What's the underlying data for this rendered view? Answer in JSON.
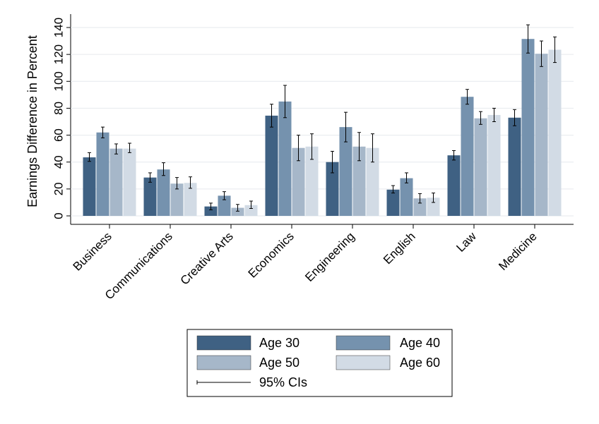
{
  "chart_data": {
    "type": "bar",
    "y_label": "Earnings Difference in Percent",
    "categories": [
      "Business",
      "Communications",
      "Creative Arts",
      "Economics",
      "Engineering",
      "English",
      "Law",
      "Medicine"
    ],
    "series": [
      {
        "name": "Age 30",
        "color": "#3f6183",
        "values": [
          43.5,
          28.5,
          7,
          74.5,
          40,
          19.5,
          45,
          73
        ],
        "ci_low": [
          40.5,
          25,
          4.5,
          66,
          32,
          17,
          41.5,
          67
        ],
        "ci_high": [
          47,
          32,
          9.5,
          83,
          48,
          22.5,
          48.5,
          79
        ]
      },
      {
        "name": "Age 40",
        "color": "#7592ae",
        "values": [
          62,
          34.5,
          15,
          85,
          66,
          28,
          88.5,
          131.5
        ],
        "ci_low": [
          58,
          30,
          12,
          73,
          55,
          24.5,
          83,
          121
        ],
        "ci_high": [
          66,
          39.5,
          18,
          97,
          77,
          32,
          94,
          142
        ]
      },
      {
        "name": "Age 50",
        "color": "#a6b7c9",
        "values": [
          50,
          24,
          6,
          50.5,
          51.5,
          13,
          72.5,
          120.5
        ],
        "ci_low": [
          46,
          20,
          3.5,
          41,
          41,
          9.5,
          68,
          111
        ],
        "ci_high": [
          53.5,
          28.5,
          8.5,
          60,
          62,
          16.5,
          77.5,
          130
        ]
      },
      {
        "name": "Age 60",
        "color": "#d2dbe5",
        "values": [
          50,
          24.5,
          8,
          51.5,
          50.5,
          13.5,
          75,
          123.5
        ],
        "ci_low": [
          47,
          20.5,
          5.5,
          42,
          40,
          10,
          70,
          114
        ],
        "ci_high": [
          54,
          29,
          11,
          61,
          61,
          17,
          80,
          133
        ]
      }
    ],
    "ci_label": "95% CIs",
    "ylim": [
      0,
      140
    ],
    "yticks": [
      0,
      20,
      40,
      60,
      80,
      100,
      120,
      140
    ],
    "grid": true
  }
}
